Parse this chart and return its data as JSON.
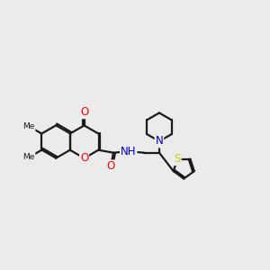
{
  "bg_color": "#ebebeb",
  "bond_color": "#1a1a1a",
  "bond_width": 1.6,
  "atom_colors": {
    "O": "#ff0000",
    "N": "#0000cc",
    "S": "#cccc00",
    "C": "#1a1a1a"
  },
  "font_size_atom": 8.5,
  "xlim": [
    0.2,
    10.0
  ],
  "ylim": [
    2.5,
    9.0
  ]
}
